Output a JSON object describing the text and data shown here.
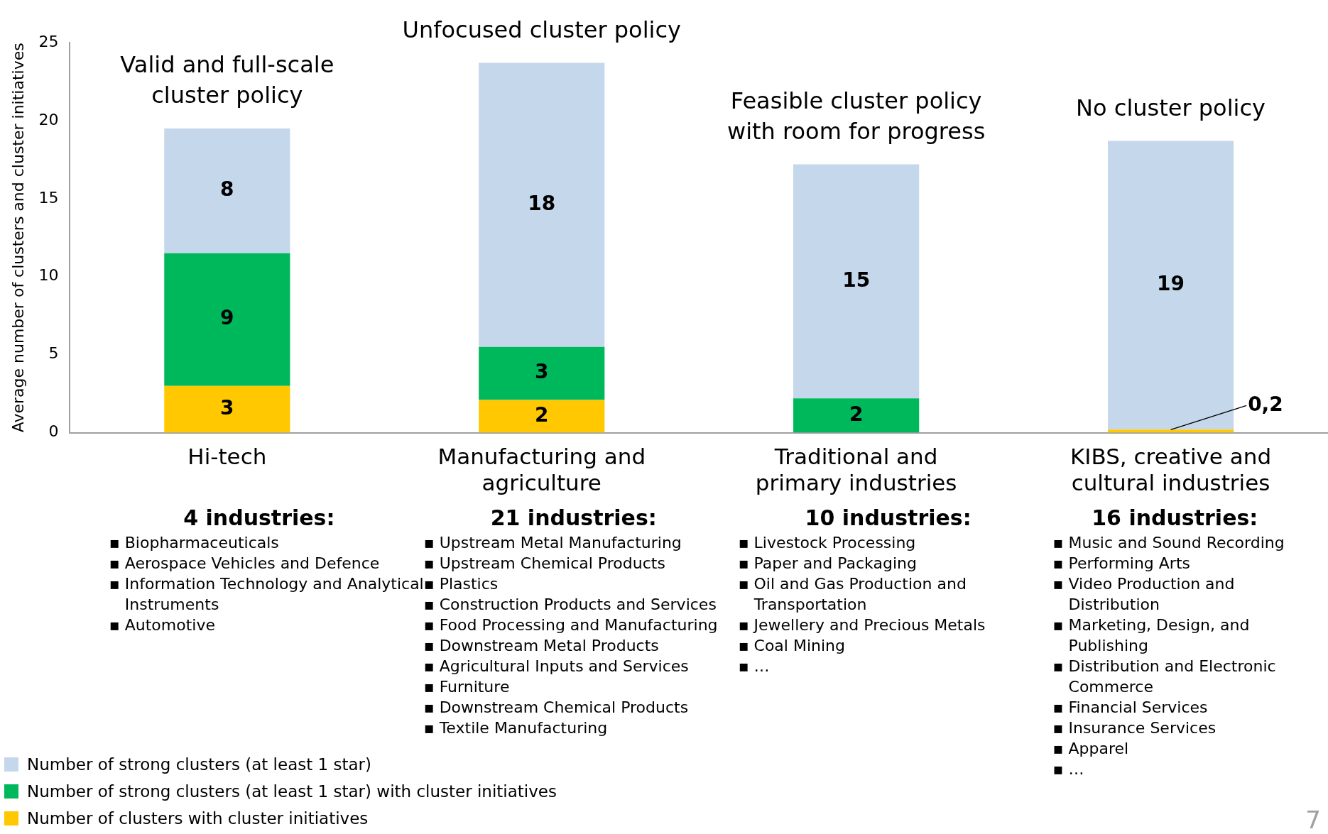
{
  "chart_data": {
    "type": "bar",
    "stacked": true,
    "ylabel": "Average number of clusters and cluster initiatives",
    "categories": [
      "Hi-tech",
      "Manufacturing and agriculture",
      "Traditional and primary industries",
      "KIBS, creative and cultural industries"
    ],
    "series": [
      {
        "name": "Number of clusters with cluster initiatives",
        "color": "#ffc800",
        "values": [
          3.0,
          2.1,
          null,
          0.2
        ],
        "value_labels": [
          "3",
          "2",
          null,
          "0,2"
        ]
      },
      {
        "name": "Number of strong clusters (at least 1 star) with cluster initiatives",
        "color": "#00b85c",
        "values": [
          8.5,
          3.4,
          2.2,
          null
        ],
        "value_labels": [
          "9",
          "3",
          "2",
          null
        ]
      },
      {
        "name": "Number of strong clusters (at least 1 star)",
        "color": "#c5d7eb",
        "values": [
          8.0,
          18.2,
          15.0,
          18.5
        ],
        "value_labels": [
          "8",
          "18",
          "15",
          "19"
        ]
      }
    ],
    "ylim": [
      0,
      25
    ],
    "yticks": [
      0,
      5,
      10,
      15,
      20,
      25
    ],
    "legend": "bottom left",
    "annotations": [
      "Valid and full-scale cluster policy",
      "Unfocused cluster policy",
      "Feasible cluster policy with room for progress",
      "No cluster policy",
      "4 industries:\n▪ Biopharmaceuticals\n▪ Aerospace Vehicles and Defence\n▪ Information Technology and Analytical Instruments\n▪ Automotive",
      "21 industries:\n▪ Upstream Metal Manufacturing\n▪ Upstream Chemical Products\n▪ Plastics\n▪ Construction Products and Services\n▪ Food Processing and Manufacturing\n▪ Downstream Metal Products\n▪ Agricultural Inputs and Services\n▪ Furniture\n▪ Downstream Chemical Products\n▪ Textile Manufacturing",
      "10 industries:\n▪ Livestock Processing\n▪ Paper and Packaging\n▪ Oil and Gas Production and Transportation\n▪ Jewellery and Precious Metals\n▪ Coal Mining\n▪ …",
      "16 industries:\n▪ Music and Sound Recording\n▪ Performing Arts\n▪ Video Production and Distribution\n▪ Marketing, Design, and Publishing\n▪ Distribution and Electronic Commerce\n▪ Financial Services\n▪ Insurance Services\n▪ Apparel\n▪ …",
      "7"
    ]
  }
}
